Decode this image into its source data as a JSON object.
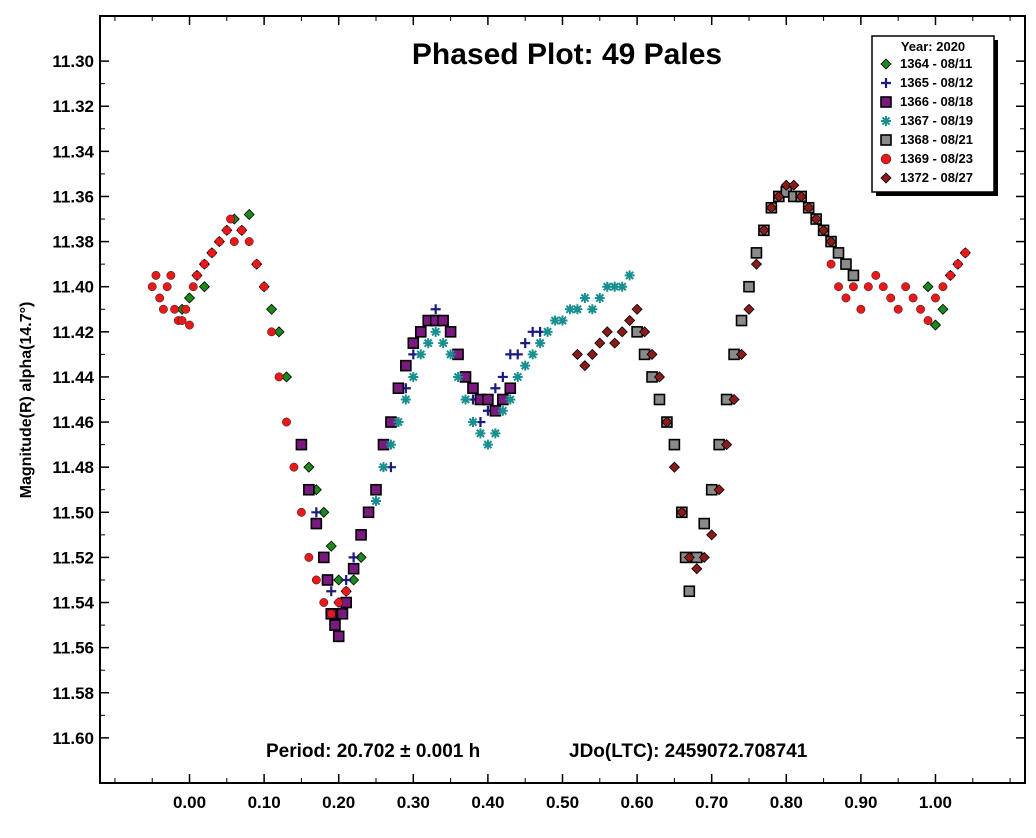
{
  "chart_data": {
    "type": "scatter",
    "title": "Phased Plot: 49 Pales",
    "xlabel": "",
    "ylabel": "Magnitude(R) alpha(14.7°)",
    "xlim": [
      -0.12,
      1.12
    ],
    "ylim": [
      11.28,
      11.62
    ],
    "y_inverted": true,
    "x_ticks": [
      0.0,
      0.1,
      0.2,
      0.3,
      0.4,
      0.5,
      0.6,
      0.7,
      0.8,
      0.9,
      1.0
    ],
    "x_tick_labels": [
      "0.00",
      "0.10",
      "0.20",
      "0.30",
      "0.40",
      "0.50",
      "0.60",
      "0.70",
      "0.80",
      "0.90",
      "1.00"
    ],
    "y_ticks": [
      11.3,
      11.32,
      11.34,
      11.36,
      11.38,
      11.4,
      11.42,
      11.44,
      11.46,
      11.48,
      11.5,
      11.52,
      11.54,
      11.56,
      11.58,
      11.6
    ],
    "y_tick_labels": [
      "11.30",
      "11.32",
      "11.34",
      "11.36",
      "11.38",
      "11.40",
      "11.42",
      "11.44",
      "11.46",
      "11.48",
      "11.50",
      "11.52",
      "11.54",
      "11.56",
      "11.58",
      "11.60"
    ],
    "grid": false,
    "legend": {
      "placement": "top-right",
      "title": "Year: 2020"
    },
    "footer": {
      "period": "Period: 20.702 ± 0.001 h",
      "epoch": "JDo(LTC): 2459072.708741"
    },
    "series": [
      {
        "name": "1364 - 08/11",
        "marker": "diamond",
        "color": "#1a8a1a",
        "x": [
          -0.01,
          0.0,
          0.01,
          0.02,
          0.02,
          0.03,
          0.04,
          0.05,
          0.06,
          0.07,
          0.08,
          0.09,
          0.1,
          0.11,
          0.12,
          0.13,
          0.16,
          0.17,
          0.18,
          0.19,
          0.2,
          0.21,
          0.22,
          0.23,
          0.24,
          0.25,
          0.26,
          0.27,
          0.99,
          1.0,
          1.01,
          1.02,
          1.03,
          1.04
        ],
        "y": [
          11.41,
          11.405,
          11.395,
          11.39,
          11.4,
          11.385,
          11.38,
          11.375,
          11.37,
          11.375,
          11.368,
          11.39,
          11.4,
          11.41,
          11.42,
          11.44,
          11.48,
          11.49,
          11.5,
          11.515,
          11.53,
          11.535,
          11.53,
          11.52,
          11.5,
          11.49,
          11.47,
          11.46,
          11.4,
          11.417,
          11.41,
          11.395,
          11.39,
          11.385
        ]
      },
      {
        "name": "1365 - 08/12",
        "marker": "plus",
        "color": "#1a1a80",
        "x": [
          0.16,
          0.17,
          0.18,
          0.19,
          0.2,
          0.21,
          0.22,
          0.27,
          0.28,
          0.29,
          0.3,
          0.31,
          0.32,
          0.33,
          0.34,
          0.35,
          0.36,
          0.37,
          0.38,
          0.39,
          0.4,
          0.41,
          0.42,
          0.43,
          0.44,
          0.45,
          0.46,
          0.47
        ],
        "y": [
          11.49,
          11.5,
          11.52,
          11.535,
          11.54,
          11.53,
          11.52,
          11.48,
          11.46,
          11.445,
          11.43,
          11.42,
          11.415,
          11.41,
          11.415,
          11.42,
          11.43,
          11.44,
          11.45,
          11.46,
          11.455,
          11.445,
          11.44,
          11.43,
          11.43,
          11.425,
          11.42,
          11.42
        ]
      },
      {
        "name": "1366 - 08/18",
        "marker": "square",
        "color": "#7a1a80",
        "x": [
          0.15,
          0.16,
          0.17,
          0.18,
          0.185,
          0.19,
          0.195,
          0.2,
          0.205,
          0.21,
          0.22,
          0.23,
          0.24,
          0.25,
          0.26,
          0.27,
          0.28,
          0.29,
          0.3,
          0.31,
          0.32,
          0.33,
          0.34,
          0.35,
          0.36,
          0.37,
          0.38,
          0.39,
          0.4,
          0.41,
          0.42,
          0.43
        ],
        "y": [
          11.47,
          11.49,
          11.505,
          11.52,
          11.53,
          11.545,
          11.55,
          11.555,
          11.545,
          11.54,
          11.525,
          11.51,
          11.5,
          11.49,
          11.47,
          11.46,
          11.445,
          11.435,
          11.425,
          11.42,
          11.415,
          11.415,
          11.415,
          11.42,
          11.43,
          11.44,
          11.445,
          11.45,
          11.45,
          11.455,
          11.45,
          11.445
        ]
      },
      {
        "name": "1367 - 08/19",
        "marker": "asterisk",
        "color": "#1a8f8f",
        "x": [
          0.25,
          0.26,
          0.27,
          0.28,
          0.29,
          0.3,
          0.31,
          0.32,
          0.33,
          0.34,
          0.35,
          0.36,
          0.37,
          0.38,
          0.39,
          0.4,
          0.41,
          0.42,
          0.43,
          0.44,
          0.45,
          0.46,
          0.47,
          0.48,
          0.49,
          0.5,
          0.51,
          0.52,
          0.53,
          0.54,
          0.55,
          0.56,
          0.57,
          0.58,
          0.59
        ],
        "y": [
          11.495,
          11.48,
          11.47,
          11.46,
          11.45,
          11.44,
          11.43,
          11.425,
          11.42,
          11.425,
          11.43,
          11.44,
          11.45,
          11.46,
          11.465,
          11.47,
          11.465,
          11.455,
          11.45,
          11.44,
          11.435,
          11.43,
          11.425,
          11.42,
          11.415,
          11.415,
          11.41,
          11.41,
          11.405,
          11.41,
          11.405,
          11.4,
          11.4,
          11.4,
          11.395
        ]
      },
      {
        "name": "1368 - 08/21",
        "marker": "square",
        "color": "#8a8a8a",
        "x": [
          0.6,
          0.61,
          0.62,
          0.63,
          0.64,
          0.65,
          0.66,
          0.665,
          0.67,
          0.68,
          0.69,
          0.7,
          0.71,
          0.72,
          0.73,
          0.74,
          0.75,
          0.76,
          0.77,
          0.78,
          0.79,
          0.8,
          0.81,
          0.82,
          0.83,
          0.84,
          0.85,
          0.86,
          0.87,
          0.88,
          0.89
        ],
        "y": [
          11.42,
          11.43,
          11.44,
          11.45,
          11.46,
          11.47,
          11.5,
          11.52,
          11.535,
          11.52,
          11.505,
          11.49,
          11.47,
          11.45,
          11.43,
          11.415,
          11.4,
          11.385,
          11.375,
          11.365,
          11.36,
          11.358,
          11.36,
          11.36,
          11.365,
          11.37,
          11.375,
          11.38,
          11.385,
          11.39,
          11.395
        ]
      },
      {
        "name": "1369 - 08/23",
        "marker": "circle",
        "color": "#e61a1a",
        "x": [
          -0.05,
          -0.045,
          -0.04,
          -0.035,
          -0.03,
          -0.025,
          -0.02,
          -0.015,
          -0.01,
          -0.005,
          0.0,
          0.005,
          0.01,
          0.02,
          0.03,
          0.04,
          0.05,
          0.055,
          0.06,
          0.07,
          0.08,
          0.09,
          0.1,
          0.11,
          0.12,
          0.13,
          0.14,
          0.15,
          0.16,
          0.17,
          0.18,
          0.19,
          0.2,
          0.21,
          0.86,
          0.87,
          0.88,
          0.89,
          0.9,
          0.91,
          0.92,
          0.93,
          0.94,
          0.95,
          0.96,
          0.97,
          0.98,
          0.99,
          1.0,
          1.01,
          1.02,
          1.03,
          1.04
        ],
        "y": [
          11.4,
          11.395,
          11.405,
          11.41,
          11.4,
          11.395,
          11.41,
          11.415,
          11.415,
          11.41,
          11.417,
          11.4,
          11.395,
          11.39,
          11.385,
          11.38,
          11.375,
          11.37,
          11.38,
          11.375,
          11.38,
          11.39,
          11.4,
          11.42,
          11.44,
          11.46,
          11.48,
          11.5,
          11.52,
          11.53,
          11.54,
          11.545,
          11.54,
          11.535,
          11.39,
          11.4,
          11.405,
          11.4,
          11.41,
          11.4,
          11.395,
          11.4,
          11.405,
          11.41,
          11.4,
          11.405,
          11.41,
          11.415,
          11.405,
          11.4,
          11.395,
          11.39,
          11.385
        ]
      },
      {
        "name": "1372 - 08/27",
        "marker": "diamond",
        "color": "#8b1a1a",
        "x": [
          0.52,
          0.53,
          0.54,
          0.55,
          0.56,
          0.57,
          0.58,
          0.59,
          0.6,
          0.61,
          0.62,
          0.63,
          0.64,
          0.65,
          0.66,
          0.67,
          0.68,
          0.69,
          0.7,
          0.71,
          0.72,
          0.73,
          0.74,
          0.75,
          0.76,
          0.77,
          0.78,
          0.79,
          0.8,
          0.81,
          0.82,
          0.83,
          0.84,
          0.85,
          0.86
        ],
        "y": [
          11.43,
          11.435,
          11.43,
          11.425,
          11.42,
          11.425,
          11.42,
          11.415,
          11.41,
          11.42,
          11.43,
          11.44,
          11.46,
          11.48,
          11.5,
          11.52,
          11.525,
          11.52,
          11.51,
          11.49,
          11.47,
          11.45,
          11.43,
          11.41,
          11.39,
          11.375,
          11.365,
          11.36,
          11.355,
          11.355,
          11.36,
          11.365,
          11.37,
          11.375,
          11.38
        ]
      }
    ]
  }
}
